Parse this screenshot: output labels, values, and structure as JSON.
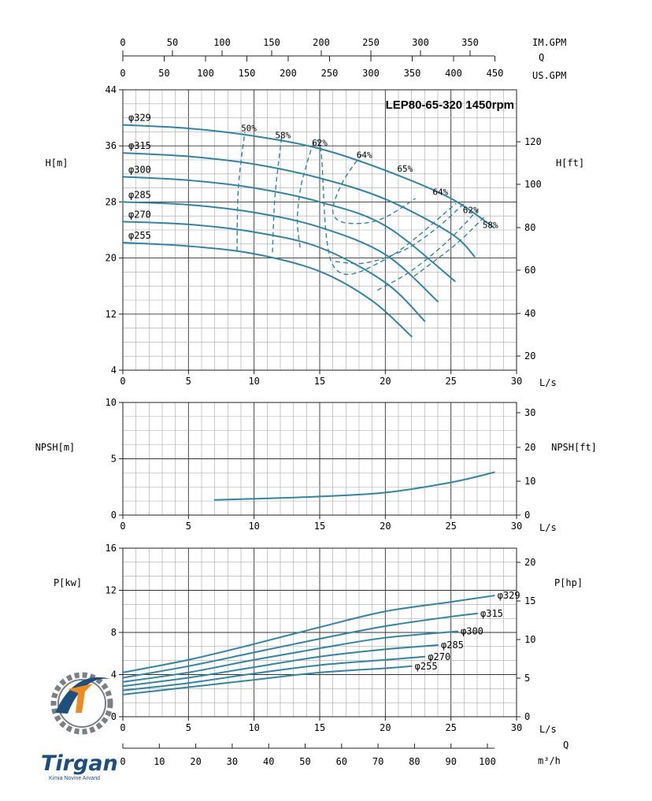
{
  "colors": {
    "curve": "#2e86a4",
    "grid_minor": "#a7a7a7",
    "grid_major": "#333333",
    "logo_blue": "#1d4f7e",
    "logo_orange": "#f08a1c",
    "logo_gray": "#7c7f83"
  },
  "title": "LEP80-65-320 1450rpm",
  "top_scales": {
    "im_gpm": {
      "label": "IM.GPM",
      "ticks": [
        "0",
        "50",
        "100",
        "150",
        "200",
        "250",
        "300",
        "350"
      ]
    },
    "q_label": "Q",
    "us_gpm": {
      "label": "US.GPM",
      "ticks": [
        "0",
        "50",
        "100",
        "150",
        "200",
        "250",
        "300",
        "350",
        "400",
        "450"
      ]
    }
  },
  "bottom_scale": {
    "q_label": "Q",
    "unit": "m³/h",
    "ticks": [
      "0",
      "10",
      "20",
      "30",
      "40",
      "50",
      "60",
      "70",
      "80",
      "90",
      "100"
    ]
  },
  "logo": {
    "brand": "Tirgan",
    "tagline": "Kimia Novine Arvand"
  },
  "chart_data": [
    {
      "type": "line",
      "name": "head",
      "xlabel": "L/s",
      "ylabel": "H[m]",
      "ylabel_right": "H[ft]",
      "xlim": [
        0,
        30
      ],
      "ylim": [
        4,
        44
      ],
      "x_ticks": [
        "0",
        "5",
        "10",
        "15",
        "20",
        "25",
        "30"
      ],
      "y_ticks": [
        "4",
        "12",
        "20",
        "28",
        "36",
        "44"
      ],
      "y_right_ticks": [
        "20",
        "40",
        "60",
        "80",
        "100",
        "120"
      ],
      "series": [
        {
          "name": "φ329",
          "x": [
            0,
            5,
            10,
            15,
            20,
            25,
            28.3
          ],
          "y": [
            39.0,
            38.5,
            37.4,
            35.6,
            32.5,
            28.5,
            24.3
          ]
        },
        {
          "name": "φ315",
          "x": [
            0,
            5,
            10,
            15,
            20,
            25,
            26.8
          ],
          "y": [
            35.0,
            34.5,
            33.4,
            31.4,
            28.4,
            23.5,
            20.2
          ]
        },
        {
          "name": "φ300",
          "x": [
            0,
            5,
            10,
            15,
            20,
            25.3
          ],
          "y": [
            31.6,
            31.1,
            30.0,
            28.0,
            24.6,
            16.7
          ]
        },
        {
          "name": "φ285",
          "x": [
            0,
            5,
            10,
            15,
            20,
            24.0
          ],
          "y": [
            28.0,
            27.6,
            26.5,
            24.4,
            20.5,
            13.8
          ]
        },
        {
          "name": "φ270",
          "x": [
            0,
            5,
            10,
            15,
            20,
            23.0
          ],
          "y": [
            25.2,
            24.8,
            23.7,
            21.5,
            16.5,
            11.0
          ]
        },
        {
          "name": "φ255",
          "x": [
            0,
            5,
            10,
            15,
            19.0,
            22.0
          ],
          "y": [
            22.2,
            21.7,
            20.6,
            18.1,
            13.9,
            8.8
          ]
        }
      ],
      "efficiency_contours": [
        {
          "label": "50%",
          "x": [
            8.7,
            8.8,
            9.3
          ],
          "y": [
            21.0,
            30.0,
            38.0
          ]
        },
        {
          "label": "58%",
          "x": [
            11.4,
            11.6,
            12.1
          ],
          "y": [
            20.8,
            29.0,
            37.2
          ]
        },
        {
          "label": "62%",
          "x": [
            13.5,
            13.3,
            13.8,
            15.0,
            16.0,
            20.0,
            25.4
          ],
          "y": [
            21.5,
            26.0,
            32.0,
            36.2,
            19.0,
            19.8,
            27.8
          ]
        },
        {
          "label": "64%",
          "x": [
            18.2,
            16.8,
            16.0,
            16.6,
            18.5,
            20.2,
            22.3
          ],
          "y": [
            34.8,
            31.0,
            27.0,
            25.2,
            25.0,
            26.0,
            28.5
          ]
        },
        {
          "label": "64%",
          "x": [
            16.2,
            18.5,
            21.5,
            24.0,
            26.0
          ],
          "y": [
            19.5,
            19.3,
            21.2,
            24.4,
            27.8
          ]
        },
        {
          "label": "62%",
          "x": [
            19.4,
            22.0,
            24.8,
            27.1
          ],
          "y": [
            15.4,
            18.2,
            22.5,
            27.0
          ]
        },
        {
          "label": "58%",
          "x": [
            22.2,
            25.4,
            27.5
          ],
          "y": [
            17.4,
            22.0,
            25.8
          ]
        }
      ],
      "efficiency_labels": [
        {
          "text": "50%",
          "x": 9.6,
          "y": 38.1
        },
        {
          "text": "58%",
          "x": 12.2,
          "y": 37.1
        },
        {
          "text": "62%",
          "x": 15.0,
          "y": 36.0
        },
        {
          "text": "64%",
          "x": 18.4,
          "y": 34.3
        },
        {
          "text": "65%",
          "x": 21.5,
          "y": 32.3
        },
        {
          "text": "64%",
          "x": 24.2,
          "y": 29.0
        },
        {
          "text": "62%",
          "x": 26.5,
          "y": 26.4
        },
        {
          "text": "58%",
          "x": 28.0,
          "y": 24.3
        }
      ]
    },
    {
      "type": "line",
      "name": "npsh",
      "xlabel": "L/s",
      "ylabel": "NPSH[m]",
      "ylabel_right": "NPSH[ft]",
      "xlim": [
        0,
        30
      ],
      "ylim": [
        0,
        10
      ],
      "x_ticks": [
        "0",
        "5",
        "10",
        "15",
        "20",
        "25",
        "30"
      ],
      "y_ticks": [
        "0",
        "5",
        "10"
      ],
      "y_right_ticks": [
        "0",
        "10",
        "20",
        "30"
      ],
      "series": [
        {
          "name": "NPSH",
          "x": [
            7,
            10,
            15,
            20,
            25,
            28.3
          ],
          "y": [
            1.35,
            1.45,
            1.65,
            2.0,
            2.9,
            3.8
          ]
        }
      ]
    },
    {
      "type": "line",
      "name": "power",
      "xlabel": "L/s",
      "ylabel": "P[kw]",
      "ylabel_right": "P[hp]",
      "xlim": [
        0,
        30
      ],
      "ylim": [
        0,
        16
      ],
      "x_ticks": [
        "0",
        "5",
        "10",
        "15",
        "20",
        "25",
        "30"
      ],
      "y_ticks": [
        "0",
        "4",
        "8",
        "12",
        "16"
      ],
      "y_right_ticks": [
        "0",
        "5",
        "10",
        "15",
        "20"
      ],
      "series": [
        {
          "name": "φ329",
          "x": [
            0,
            5,
            10,
            15,
            20,
            25,
            28.3
          ],
          "y": [
            4.2,
            5.4,
            6.9,
            8.5,
            10.0,
            10.9,
            11.5
          ]
        },
        {
          "name": "φ315",
          "x": [
            0,
            5,
            10,
            15,
            20,
            25,
            27.0
          ],
          "y": [
            3.7,
            4.8,
            6.1,
            7.4,
            8.6,
            9.5,
            9.8
          ]
        },
        {
          "name": "φ300",
          "x": [
            0,
            5,
            10,
            15,
            20,
            25.5
          ],
          "y": [
            3.3,
            4.2,
            5.4,
            6.5,
            7.5,
            8.1
          ]
        },
        {
          "name": "φ285",
          "x": [
            0,
            5,
            10,
            15,
            20,
            24.0
          ],
          "y": [
            2.9,
            3.7,
            4.7,
            5.7,
            6.4,
            6.8
          ]
        },
        {
          "name": "φ270",
          "x": [
            0,
            5,
            10,
            15,
            20,
            23.0
          ],
          "y": [
            2.5,
            3.2,
            4.1,
            4.9,
            5.4,
            5.7
          ]
        },
        {
          "name": "φ255",
          "x": [
            0,
            5,
            10,
            15,
            20,
            22.0
          ],
          "y": [
            2.1,
            2.8,
            3.5,
            4.2,
            4.6,
            4.8
          ]
        }
      ]
    }
  ]
}
